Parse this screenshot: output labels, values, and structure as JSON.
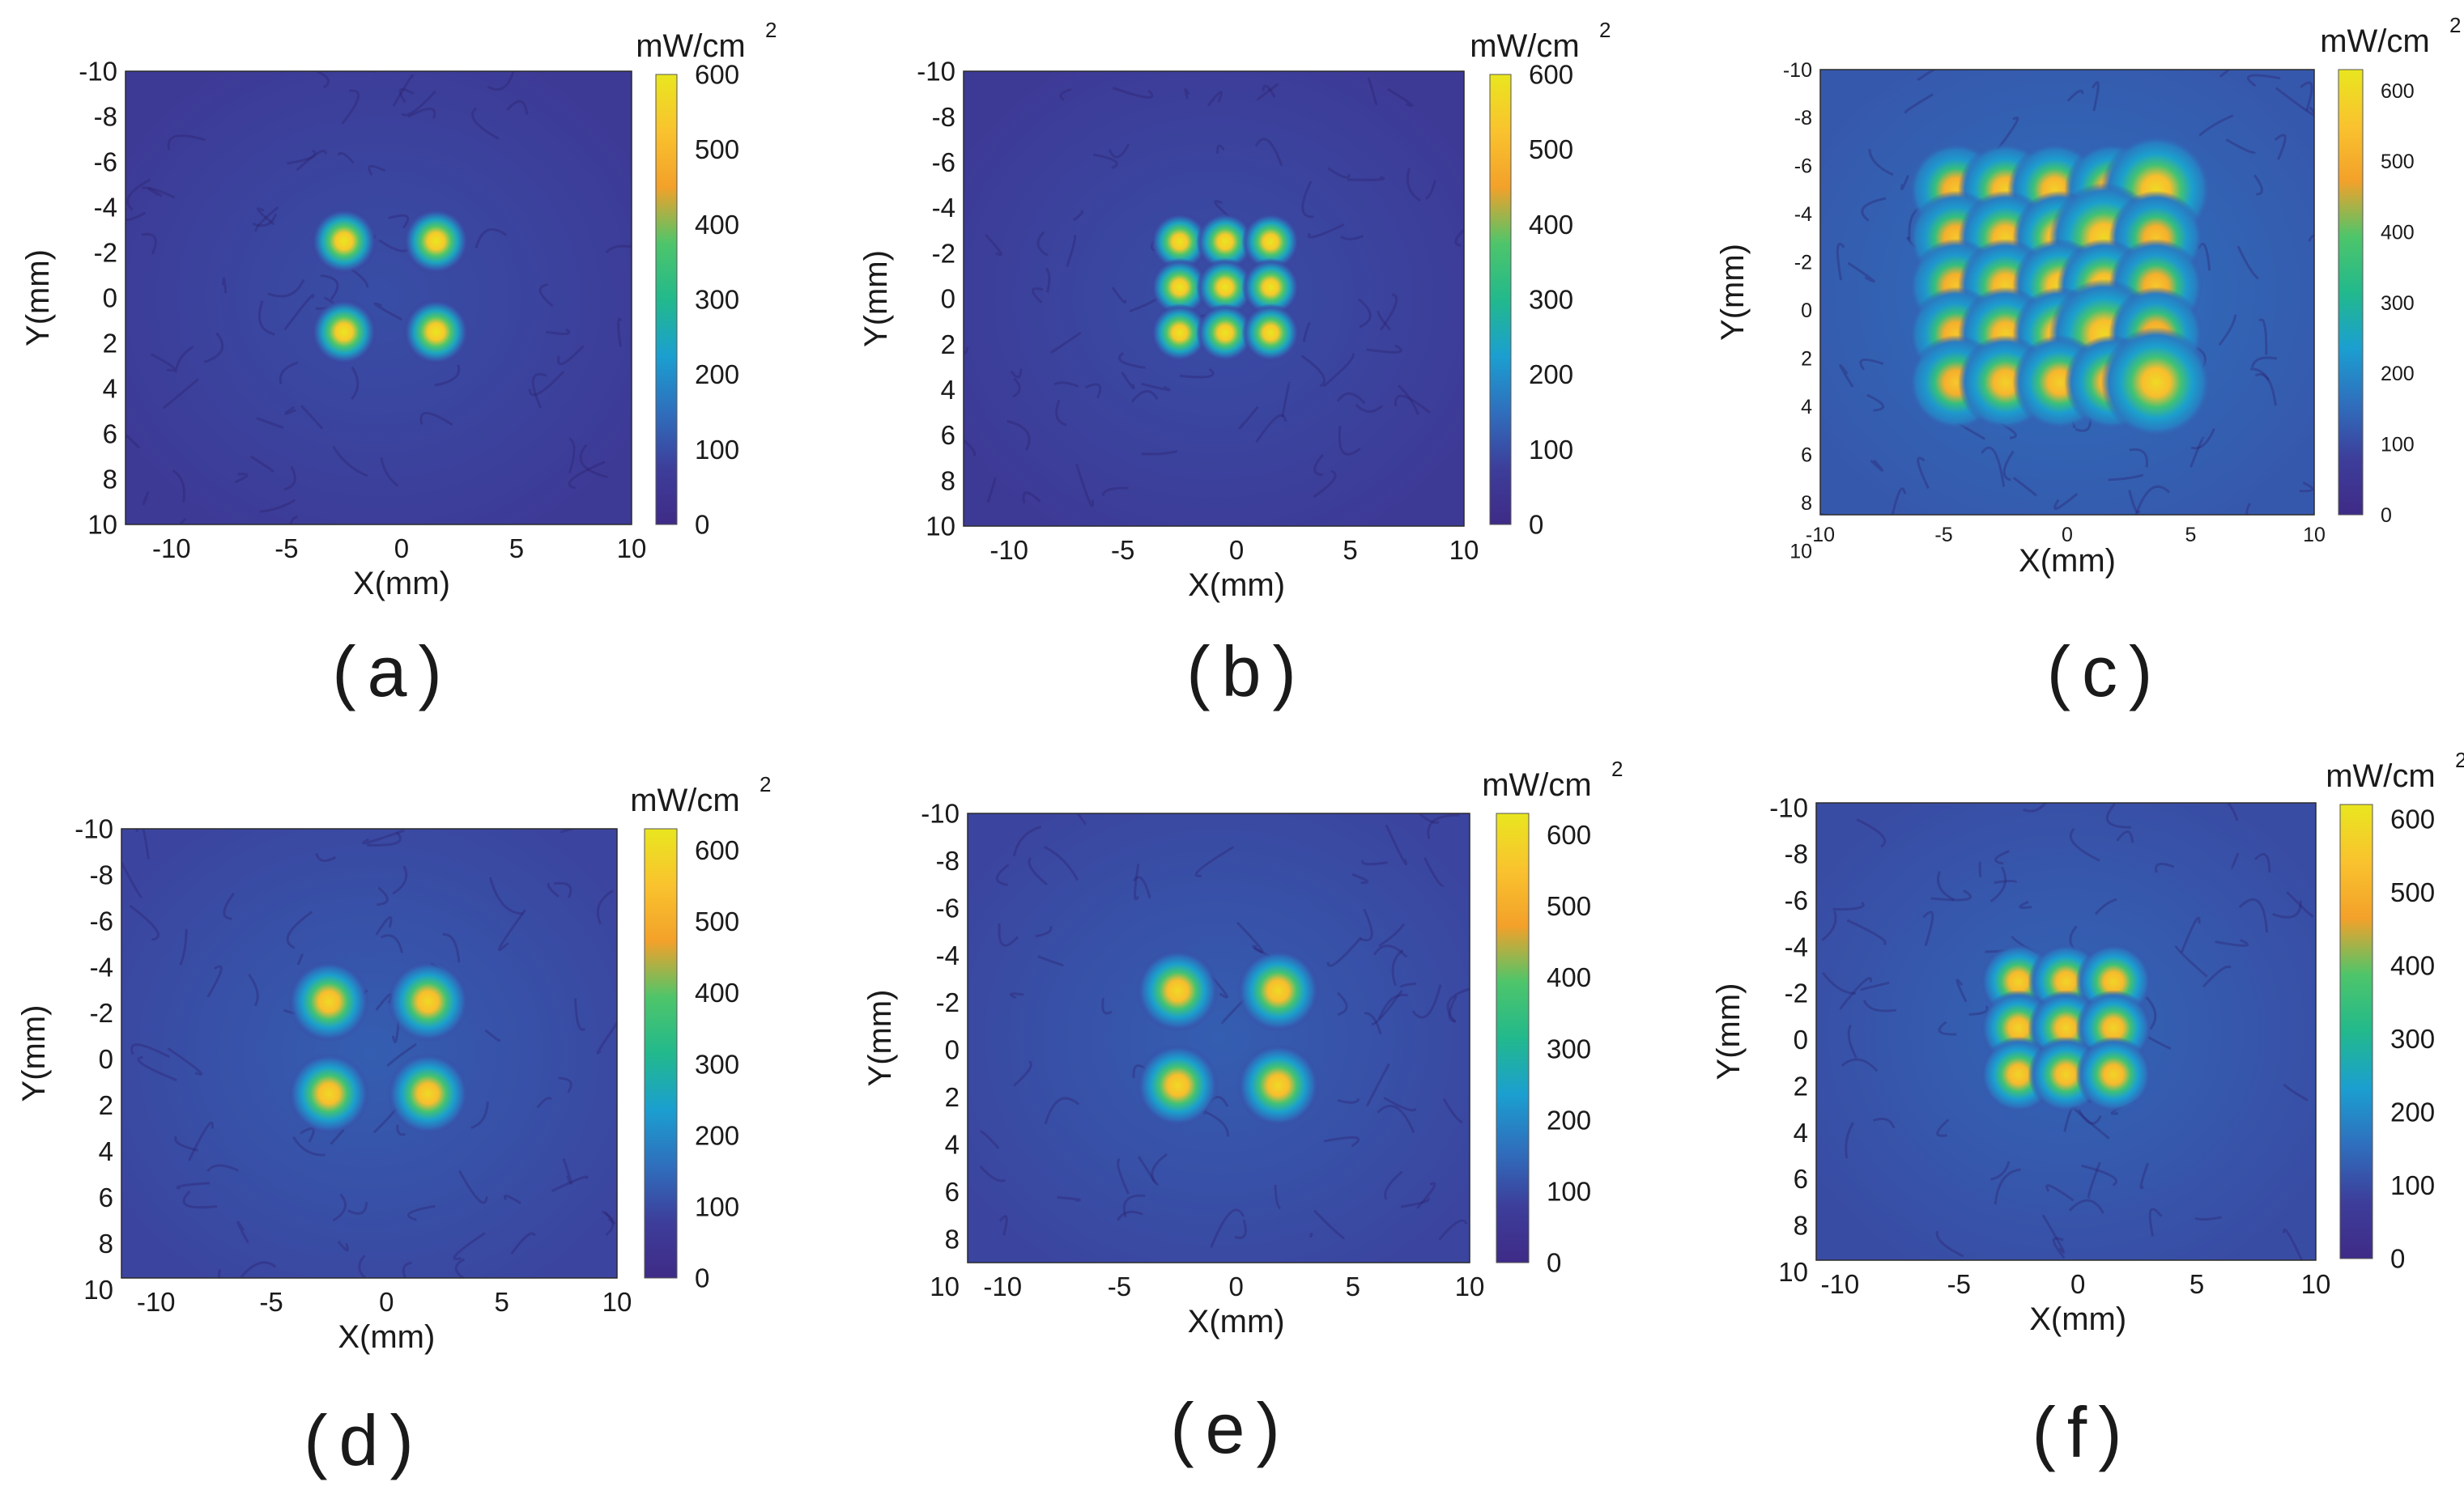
{
  "figure": {
    "colormap": [
      "#3e2b87",
      "#3d3e9a",
      "#2f6fbd",
      "#1b9fd0",
      "#22b98c",
      "#4ec56a",
      "#f3a12a",
      "#f9c32e",
      "#e9e61f"
    ],
    "panels": [
      {
        "letter": "(a)",
        "chart_data": {
          "type": "heatmap",
          "title": "",
          "xlabel": "X(mm)",
          "ylabel": "Y(mm)",
          "xlim": [
            -12,
            10
          ],
          "ylim": [
            -10,
            10
          ],
          "x_ticks": [
            -10,
            -5,
            0,
            5,
            10
          ],
          "y_ticks": [
            -10,
            -8,
            -6,
            -4,
            -2,
            0,
            2,
            4,
            6,
            8,
            10
          ],
          "colorbar": {
            "unit": "mW/cm",
            "unit_superscript": "2",
            "range": [
              0,
              600
            ],
            "ticks": [
              0,
              100,
              200,
              300,
              400,
              500,
              600
            ]
          },
          "background_level": 60,
          "spots": [
            {
              "x": -2.5,
              "y": -2.5,
              "peak": 600,
              "sigma": 0.45
            },
            {
              "x": 1.5,
              "y": -2.5,
              "peak": 600,
              "sigma": 0.45
            },
            {
              "x": -2.5,
              "y": 1.5,
              "peak": 600,
              "sigma": 0.45
            },
            {
              "x": 1.5,
              "y": 1.5,
              "peak": 600,
              "sigma": 0.45
            }
          ]
        }
      },
      {
        "letter": "(b)",
        "chart_data": {
          "type": "heatmap",
          "title": "",
          "xlabel": "X(mm)",
          "ylabel": "Y(mm)",
          "xlim": [
            -12,
            10
          ],
          "ylim": [
            -10,
            10
          ],
          "x_ticks": [
            -10,
            -5,
            0,
            5,
            10
          ],
          "y_ticks": [
            -10,
            -8,
            -6,
            -4,
            -2,
            0,
            2,
            4,
            6,
            8,
            10
          ],
          "colorbar": {
            "unit": "mW/cm",
            "unit_superscript": "2",
            "range": [
              0,
              600
            ],
            "ticks": [
              0,
              100,
              200,
              300,
              400,
              500,
              600
            ]
          },
          "background_level": 60,
          "spots": [
            {
              "x": -2.5,
              "y": -2.5,
              "peak": 600,
              "sigma": 0.4
            },
            {
              "x": -0.5,
              "y": -2.5,
              "peak": 600,
              "sigma": 0.4
            },
            {
              "x": 1.5,
              "y": -2.5,
              "peak": 600,
              "sigma": 0.4
            },
            {
              "x": -2.5,
              "y": -0.5,
              "peak": 600,
              "sigma": 0.4
            },
            {
              "x": -0.5,
              "y": -0.5,
              "peak": 600,
              "sigma": 0.4
            },
            {
              "x": 1.5,
              "y": -0.5,
              "peak": 600,
              "sigma": 0.4
            },
            {
              "x": -2.5,
              "y": 1.5,
              "peak": 600,
              "sigma": 0.4
            },
            {
              "x": -0.5,
              "y": 1.5,
              "peak": 600,
              "sigma": 0.4
            },
            {
              "x": 1.5,
              "y": 1.5,
              "peak": 600,
              "sigma": 0.4
            }
          ]
        }
      },
      {
        "letter": "(c)",
        "chart_data": {
          "type": "heatmap",
          "title": "",
          "xlabel": "X(mm)",
          "ylabel": "Y(mm)",
          "xlim": [
            -10,
            10
          ],
          "ylim": [
            -10,
            8.5
          ],
          "x_ticks": [
            -10,
            -5,
            0,
            5,
            10
          ],
          "y_ticks": [
            -10,
            -8,
            -6,
            -4,
            -2,
            0,
            2,
            4,
            6,
            8,
            10
          ],
          "colorbar": {
            "unit": "mW/cm",
            "unit_superscript": "2",
            "range": [
              0,
              630
            ],
            "ticks": [
              0,
              100,
              200,
              300,
              400,
              500,
              600
            ]
          },
          "background_level": 120,
          "spots": [
            {
              "x": -4.5,
              "y": -5,
              "peak": 560,
              "sigma": 0.6
            },
            {
              "x": -2.5,
              "y": -5,
              "peak": 580,
              "sigma": 0.6
            },
            {
              "x": -0.5,
              "y": -5,
              "peak": 580,
              "sigma": 0.6
            },
            {
              "x": 1.8,
              "y": -5,
              "peak": 580,
              "sigma": 0.6
            },
            {
              "x": 3.6,
              "y": -5,
              "peak": 600,
              "sigma": 0.7
            },
            {
              "x": -4.5,
              "y": -3,
              "peak": 560,
              "sigma": 0.6
            },
            {
              "x": -2.5,
              "y": -3,
              "peak": 580,
              "sigma": 0.6
            },
            {
              "x": -0.3,
              "y": -3,
              "peak": 600,
              "sigma": 0.6
            },
            {
              "x": 1.5,
              "y": -3,
              "peak": 600,
              "sigma": 0.7
            },
            {
              "x": 3.6,
              "y": -3,
              "peak": 560,
              "sigma": 0.6
            },
            {
              "x": -4.5,
              "y": -1,
              "peak": 560,
              "sigma": 0.6
            },
            {
              "x": -2.5,
              "y": -1,
              "peak": 580,
              "sigma": 0.6
            },
            {
              "x": -0.3,
              "y": -1,
              "peak": 600,
              "sigma": 0.6
            },
            {
              "x": 1.5,
              "y": -1,
              "peak": 600,
              "sigma": 0.6
            },
            {
              "x": 3.6,
              "y": -1,
              "peak": 560,
              "sigma": 0.6
            },
            {
              "x": -4.5,
              "y": 1,
              "peak": 560,
              "sigma": 0.6
            },
            {
              "x": -2.5,
              "y": 1,
              "peak": 580,
              "sigma": 0.6
            },
            {
              "x": -0.3,
              "y": 1,
              "peak": 600,
              "sigma": 0.6
            },
            {
              "x": 1.5,
              "y": 1,
              "peak": 600,
              "sigma": 0.7
            },
            {
              "x": 3.6,
              "y": 1,
              "peak": 560,
              "sigma": 0.6
            },
            {
              "x": -4.5,
              "y": 3,
              "peak": 560,
              "sigma": 0.6
            },
            {
              "x": -2.5,
              "y": 3,
              "peak": 580,
              "sigma": 0.6
            },
            {
              "x": -0.3,
              "y": 3,
              "peak": 580,
              "sigma": 0.6
            },
            {
              "x": 1.8,
              "y": 3,
              "peak": 580,
              "sigma": 0.6
            },
            {
              "x": 3.6,
              "y": 3,
              "peak": 600,
              "sigma": 0.7
            }
          ]
        }
      },
      {
        "letter": "(d)",
        "chart_data": {
          "type": "heatmap",
          "title": "",
          "xlabel": "X(mm)",
          "ylabel": "Y(mm)",
          "xlim": [
            -11.5,
            10
          ],
          "ylim": [
            -10,
            9.5
          ],
          "x_ticks": [
            -10,
            -5,
            0,
            5,
            10
          ],
          "y_ticks": [
            -10,
            -8,
            -6,
            -4,
            -2,
            0,
            2,
            4,
            6,
            8,
            10
          ],
          "colorbar": {
            "unit": "mW/cm",
            "unit_superscript": "2",
            "range": [
              0,
              630
            ],
            "ticks": [
              0,
              100,
              200,
              300,
              400,
              500,
              600
            ]
          },
          "background_level": 90,
          "spots": [
            {
              "x": -2.5,
              "y": -2.5,
              "peak": 600,
              "sigma": 0.55
            },
            {
              "x": 1.8,
              "y": -2.5,
              "peak": 600,
              "sigma": 0.55
            },
            {
              "x": -2.5,
              "y": 1.5,
              "peak": 600,
              "sigma": 0.55
            },
            {
              "x": 1.8,
              "y": 1.5,
              "peak": 600,
              "sigma": 0.55
            }
          ]
        }
      },
      {
        "letter": "(e)",
        "chart_data": {
          "type": "heatmap",
          "title": "",
          "xlabel": "X(mm)",
          "ylabel": "Y(mm)",
          "xlim": [
            -11.5,
            10
          ],
          "ylim": [
            -10,
            9
          ],
          "x_ticks": [
            -10,
            -5,
            0,
            5,
            10
          ],
          "y_ticks": [
            -10,
            -8,
            -6,
            -4,
            -2,
            0,
            2,
            4,
            6,
            8,
            10
          ],
          "colorbar": {
            "unit": "mW/cm",
            "unit_superscript": "2",
            "range": [
              0,
              630
            ],
            "ticks": [
              0,
              100,
              200,
              300,
              400,
              500,
              600
            ]
          },
          "background_level": 90,
          "spots": [
            {
              "x": -2.5,
              "y": -2.5,
              "peak": 600,
              "sigma": 0.55
            },
            {
              "x": 1.8,
              "y": -2.5,
              "peak": 600,
              "sigma": 0.55
            },
            {
              "x": -2.5,
              "y": 1.5,
              "peak": 600,
              "sigma": 0.55
            },
            {
              "x": 1.8,
              "y": 1.5,
              "peak": 600,
              "sigma": 0.55
            }
          ]
        }
      },
      {
        "letter": "(f)",
        "chart_data": {
          "type": "heatmap",
          "title": "",
          "xlabel": "X(mm)",
          "ylabel": "Y(mm)",
          "xlim": [
            -11,
            10
          ],
          "ylim": [
            -10.2,
            9.5
          ],
          "x_ticks": [
            -10,
            -5,
            0,
            5,
            10
          ],
          "y_ticks": [
            -10,
            -8,
            -6,
            -4,
            -2,
            0,
            2,
            4,
            6,
            8,
            10
          ],
          "colorbar": {
            "unit": "mW/cm",
            "unit_superscript": "2",
            "range": [
              0,
              620
            ],
            "ticks": [
              0,
              100,
              200,
              300,
              400,
              500,
              600
            ]
          },
          "background_level": 100,
          "spots": [
            {
              "x": -2.5,
              "y": -2.5,
              "peak": 580,
              "sigma": 0.5
            },
            {
              "x": -0.5,
              "y": -2.5,
              "peak": 580,
              "sigma": 0.5
            },
            {
              "x": 1.5,
              "y": -2.5,
              "peak": 580,
              "sigma": 0.5
            },
            {
              "x": -2.5,
              "y": -0.5,
              "peak": 580,
              "sigma": 0.5
            },
            {
              "x": -0.5,
              "y": -0.5,
              "peak": 580,
              "sigma": 0.5
            },
            {
              "x": 1.5,
              "y": -0.5,
              "peak": 580,
              "sigma": 0.5
            },
            {
              "x": -2.5,
              "y": 1.5,
              "peak": 580,
              "sigma": 0.5
            },
            {
              "x": -0.5,
              "y": 1.5,
              "peak": 580,
              "sigma": 0.5
            },
            {
              "x": 1.5,
              "y": 1.5,
              "peak": 580,
              "sigma": 0.5
            }
          ]
        }
      }
    ]
  }
}
